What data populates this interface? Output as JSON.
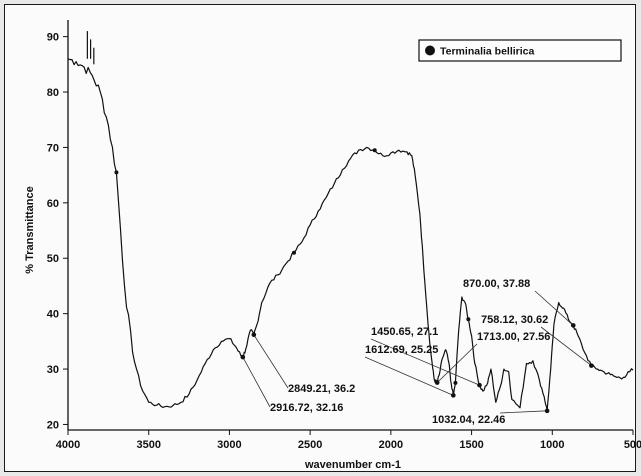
{
  "chart_data": {
    "type": "line",
    "title": "",
    "xlabel": "wavenumber cm-1",
    "ylabel": "% Transmittance",
    "xlim": [
      4000,
      500
    ],
    "ylim": [
      19,
      93
    ],
    "x_ticks": [
      4000,
      3500,
      3000,
      2500,
      2000,
      1500,
      1000,
      500
    ],
    "x_tick_labels": [
      "4000",
      "3500",
      "3000",
      "2500",
      "2000",
      "1500",
      "1000",
      "500"
    ],
    "y_ticks": [
      20,
      30,
      40,
      50,
      60,
      70,
      80,
      90
    ],
    "y_tick_labels": [
      "20",
      "30",
      "40",
      "50",
      "60",
      "70",
      "80",
      "90"
    ],
    "grid": false,
    "legend_position": "top-right",
    "series": [
      {
        "name": "Terminalia bellirica",
        "color": "#111111",
        "x": [
          4000,
          3950,
          3900,
          3850,
          3800,
          3750,
          3700,
          3650,
          3600,
          3550,
          3500,
          3450,
          3400,
          3350,
          3300,
          3250,
          3200,
          3150,
          3100,
          3050,
          3000,
          2960,
          2930,
          2917,
          2900,
          2870,
          2849,
          2830,
          2800,
          2750,
          2700,
          2650,
          2600,
          2550,
          2500,
          2450,
          2400,
          2350,
          2300,
          2250,
          2200,
          2150,
          2100,
          2050,
          2000,
          1950,
          1900,
          1870,
          1850,
          1820,
          1800,
          1780,
          1760,
          1740,
          1730,
          1713,
          1700,
          1680,
          1660,
          1640,
          1630,
          1613,
          1600,
          1580,
          1560,
          1540,
          1520,
          1500,
          1480,
          1451,
          1430,
          1400,
          1380,
          1350,
          1320,
          1300,
          1270,
          1250,
          1200,
          1160,
          1120,
          1080,
          1050,
          1032,
          1010,
          990,
          960,
          930,
          900,
          870,
          840,
          800,
          758,
          720,
          680,
          640,
          600,
          560,
          520,
          500
        ],
        "y": [
          86,
          85.5,
          84.5,
          83,
          80,
          74,
          65.5,
          45,
          33,
          27,
          24,
          23.5,
          23.2,
          23.4,
          24,
          25.5,
          28,
          31,
          33.5,
          35,
          35.5,
          34,
          32.5,
          32.16,
          33.5,
          37,
          36.2,
          38,
          42,
          45.5,
          47,
          49,
          51,
          53,
          56,
          58.5,
          61,
          63.5,
          66,
          68,
          69.5,
          70,
          69.5,
          68.5,
          69,
          69.5,
          69.2,
          68.5,
          65,
          58,
          50,
          42,
          35,
          30,
          28,
          27.56,
          29,
          32,
          33.5,
          31,
          28,
          25.25,
          27.5,
          37,
          43,
          42,
          39,
          36,
          31,
          27.1,
          26,
          27.5,
          30,
          24,
          27,
          30,
          29.5,
          24.5,
          23,
          31,
          31.5,
          28,
          25,
          22.46,
          30,
          38,
          42,
          41,
          39,
          37.88,
          36,
          33,
          30.62,
          30,
          29.5,
          29,
          28.5,
          28.5,
          29.5,
          30
        ]
      }
    ],
    "annotations": [
      {
        "text": "2849.21, 36.2",
        "x": 2849,
        "y": 36.2
      },
      {
        "text": "2916.72, 32.16",
        "x": 2917,
        "y": 32.16
      },
      {
        "text": "1450.65, 27.1",
        "x": 1451,
        "y": 27.1
      },
      {
        "text": "1612.69, 25.25",
        "x": 1613,
        "y": 25.25
      },
      {
        "text": "1713.00, 27.56",
        "x": 1713,
        "y": 27.56
      },
      {
        "text": "758.12, 30.62",
        "x": 758,
        "y": 30.62
      },
      {
        "text": "870.00, 37.88",
        "x": 870,
        "y": 37.88
      },
      {
        "text": "1032.04, 22.46",
        "x": 1032,
        "y": 22.46
      }
    ]
  }
}
